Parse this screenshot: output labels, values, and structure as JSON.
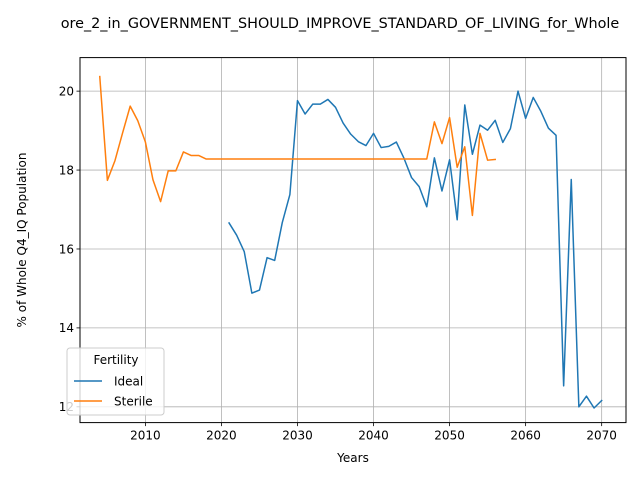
{
  "chart_data": {
    "type": "line",
    "title": "ore_2_in_GOVERNMENT_SHOULD_IMPROVE_STANDARD_OF_LIVING_for_Whole",
    "xlabel": "Years",
    "ylabel": "% of Whole Q4_IQ Population",
    "xlim": [
      2001.4,
      2073.2
    ],
    "ylim": [
      11.6,
      20.85
    ],
    "xticks": [
      2010,
      2020,
      2030,
      2040,
      2050,
      2060,
      2070
    ],
    "yticks": [
      12,
      14,
      16,
      18,
      20
    ],
    "grid": true,
    "legend": {
      "title": "Fertility",
      "placement": "lower-left"
    },
    "series": [
      {
        "name": "Ideal",
        "color": "#1f77b4",
        "x": [
          2021,
          2022,
          2023,
          2024,
          2025,
          2026,
          2027,
          2028,
          2029,
          2030,
          2031,
          2032,
          2033,
          2034,
          2035,
          2036,
          2037,
          2038,
          2039,
          2040,
          2041,
          2042,
          2043,
          2044,
          2045,
          2046,
          2047,
          2048,
          2049,
          2050,
          2051,
          2052,
          2053,
          2054,
          2055,
          2056,
          2057,
          2058,
          2059,
          2060,
          2061,
          2062,
          2063,
          2064,
          2065,
          2066,
          2067,
          2068,
          2069,
          2070
        ],
        "values": [
          16.66,
          16.35,
          15.93,
          14.88,
          14.96,
          15.78,
          15.71,
          16.67,
          17.38,
          19.76,
          19.42,
          19.67,
          19.67,
          19.79,
          19.59,
          19.19,
          18.91,
          18.72,
          18.62,
          18.93,
          18.57,
          18.6,
          18.71,
          18.3,
          17.81,
          17.58,
          17.07,
          18.31,
          17.47,
          18.26,
          16.74,
          19.65,
          18.4,
          19.14,
          19.01,
          19.26,
          18.7,
          19.05,
          20.0,
          19.31,
          19.84,
          19.49,
          19.06,
          18.88,
          12.53,
          17.76,
          12.0,
          12.27,
          11.97,
          12.16
        ]
      },
      {
        "name": "Sterile",
        "color": "#ff7f0e",
        "x": [
          2004,
          2005,
          2006,
          2007,
          2008,
          2009,
          2010,
          2011,
          2012,
          2013,
          2014,
          2015,
          2016,
          2017,
          2018,
          2019,
          2020,
          2021,
          2022,
          2023,
          2024,
          2025,
          2026,
          2027,
          2028,
          2029,
          2030,
          2031,
          2032,
          2033,
          2034,
          2035,
          2036,
          2037,
          2038,
          2039,
          2040,
          2041,
          2042,
          2043,
          2044,
          2045,
          2046,
          2047,
          2048,
          2049,
          2050,
          2051,
          2052,
          2053,
          2054,
          2055,
          2056
        ],
        "values": [
          20.37,
          17.74,
          18.24,
          18.94,
          19.62,
          19.25,
          18.71,
          17.75,
          17.2,
          17.98,
          17.98,
          18.46,
          18.37,
          18.37,
          18.28,
          18.28,
          18.28,
          18.28,
          18.28,
          18.28,
          18.28,
          18.28,
          18.28,
          18.28,
          18.28,
          18.28,
          18.28,
          18.28,
          18.28,
          18.28,
          18.28,
          18.28,
          18.28,
          18.28,
          18.28,
          18.28,
          18.28,
          18.28,
          18.28,
          18.28,
          18.28,
          18.28,
          18.28,
          18.28,
          19.22,
          18.67,
          19.33,
          18.07,
          18.59,
          16.85,
          18.93,
          18.25,
          18.27
        ]
      }
    ]
  }
}
